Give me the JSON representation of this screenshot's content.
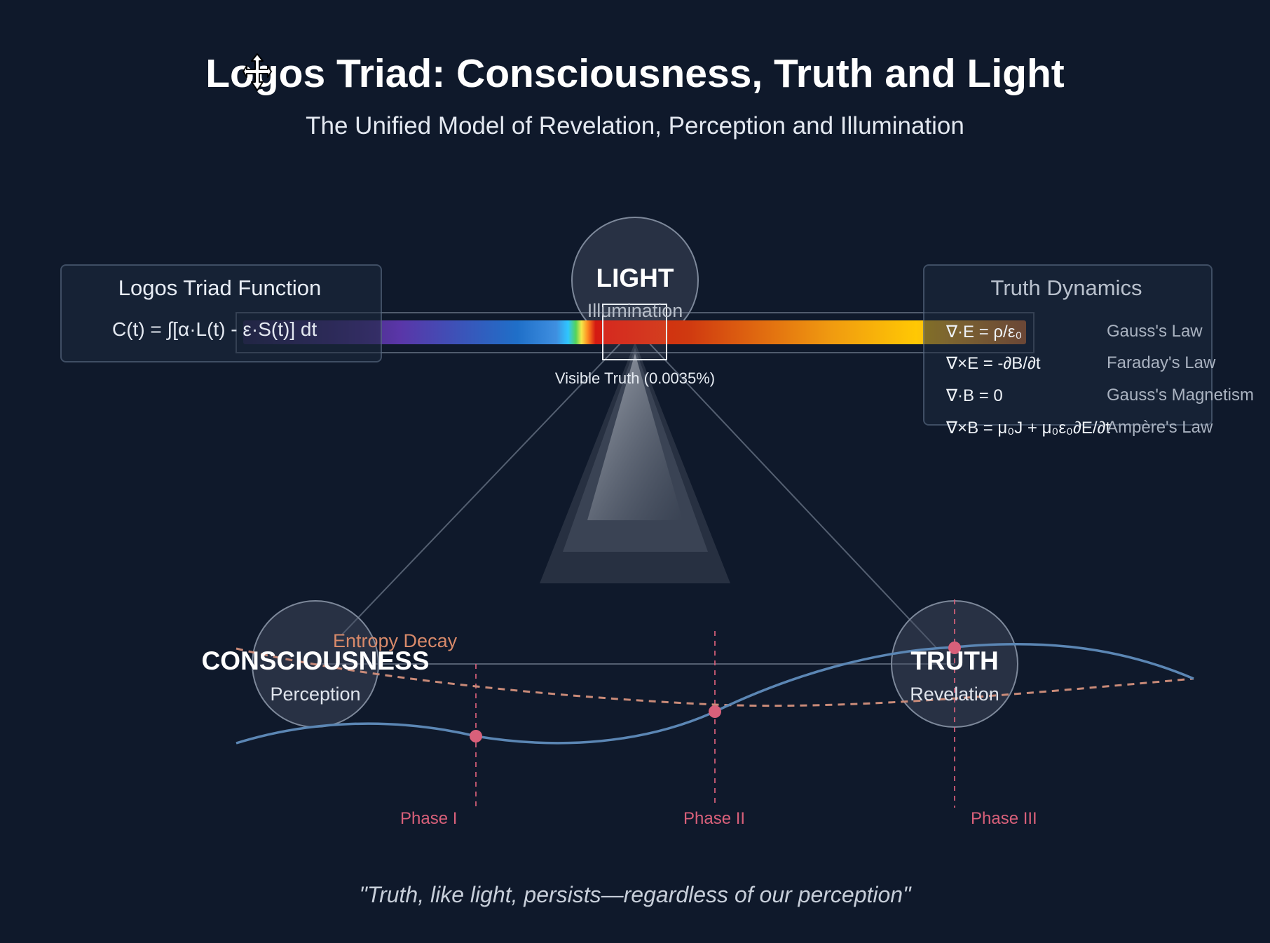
{
  "header": {
    "title": "Logos Triad: Consciousness, Truth and Light",
    "subtitle": "The Unified Model of Revelation, Perception and Illumination"
  },
  "function_panel": {
    "title": "Logos Triad Function",
    "formula": "C(t) = ∫[α·L(t) - ε·S(t)] dt"
  },
  "dynamics_panel": {
    "title": "Truth Dynamics",
    "equations": [
      {
        "eq": "∇·E = ρ/ε₀",
        "law": "Gauss's Law"
      },
      {
        "eq": "∇×E = -∂B/∂t",
        "law": "Faraday's Law"
      },
      {
        "eq": "∇·B = 0",
        "law": "Gauss's Magnetism"
      },
      {
        "eq": "∇×B = μ₀J + μ₀ε₀∂E/∂t",
        "law": "Ampère's Law"
      }
    ]
  },
  "nodes": {
    "light": {
      "label": "LIGHT",
      "sub": "Illumination"
    },
    "consciousness": {
      "label": "CONSCIOUSNESS",
      "sub": "Perception"
    },
    "truth": {
      "label": "TRUTH",
      "sub": "Revelation"
    }
  },
  "spectrum": {
    "visible_label": "Visible Truth (0.0035%)"
  },
  "curves": {
    "entropy_label": "Entropy Decay"
  },
  "phases": [
    "Phase I",
    "Phase II",
    "Phase III"
  ],
  "quote": "\"Truth, like light, persists—regardless of our perception\"",
  "colors": {
    "background": "#0f192b",
    "consciousness_curve": "#5b86b4",
    "entropy_curve": "#c98a78",
    "phase_marker": "#d9607a"
  },
  "icons": {
    "cursor": "move-cursor-icon"
  }
}
